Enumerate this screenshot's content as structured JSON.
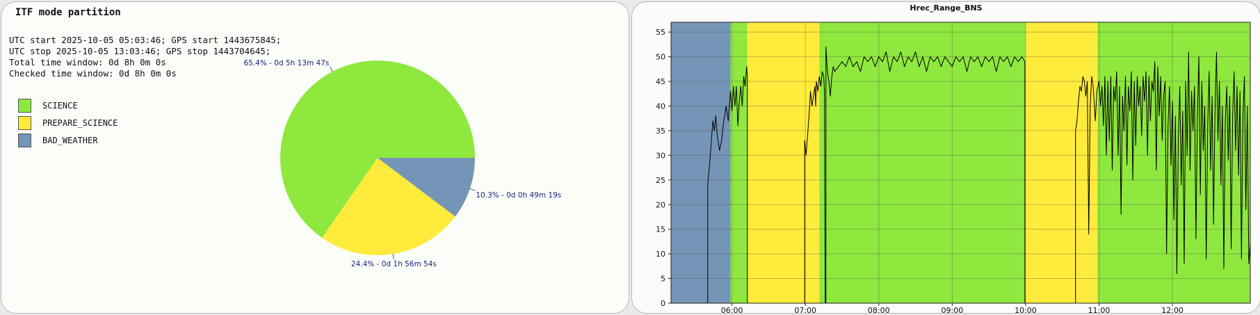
{
  "pie_panel": {
    "title": "ITF mode partition",
    "info_lines": [
      "UTC start 2025-10-05 05:03:46; GPS start 1443675845;",
      "UTC stop 2025-10-05 13:03:46; GPS stop 1443704645;",
      "Total time window: 0d 8h 0m 0s",
      "Checked time window: 0d 8h 0m 0s"
    ],
    "legend": [
      {
        "label": "SCIENCE",
        "color": "#8fe83e"
      },
      {
        "label": "PREPARE_SCIENCE",
        "color": "#ffeb3b"
      },
      {
        "label": "BAD_WEATHER",
        "color": "#7595b6"
      }
    ]
  },
  "chart_data": [
    {
      "type": "pie",
      "slices": [
        {
          "name": "SCIENCE",
          "value": 65.4,
          "label": "65.4% - 0d 5h 13m 47s",
          "color": "#8fe83e"
        },
        {
          "name": "PREPARE_SCIENCE",
          "value": 24.4,
          "label": "24.4% - 0d 1h 56m 54s",
          "color": "#ffeb3b"
        },
        {
          "name": "BAD_WEATHER",
          "value": 10.3,
          "label": "10.3% - 0d 0h 49m 19s",
          "color": "#7595b6"
        }
      ],
      "start_angle_deg": 0,
      "direction": "counterclockwise",
      "label_color": "#1a237e"
    },
    {
      "type": "line",
      "title": "Hrec_Range_BNS",
      "xlabel": "",
      "ylabel": "",
      "x_unit": "UTC hour",
      "xlim": [
        5.17,
        13.06
      ],
      "ylim": [
        0,
        57
      ],
      "x_ticks": [
        6,
        7,
        8,
        9,
        10,
        11,
        12
      ],
      "x_tick_labels": [
        "06:00",
        "07:00",
        "08:00",
        "09:00",
        "10:00",
        "11:00",
        "12:00"
      ],
      "y_ticks": [
        0,
        5,
        10,
        15,
        20,
        25,
        30,
        35,
        40,
        45,
        50,
        55
      ],
      "grid": true,
      "line_color": "#000000",
      "background_bands": [
        {
          "mode": "BAD_WEATHER",
          "x0": 5.17,
          "x1": 5.98,
          "color": "#7595b6"
        },
        {
          "mode": "SCIENCE",
          "x0": 5.98,
          "x1": 6.21,
          "color": "#8fe83e"
        },
        {
          "mode": "PREPARE_SCIENCE",
          "x0": 6.21,
          "x1": 7.19,
          "color": "#ffeb3b"
        },
        {
          "mode": "SCIENCE",
          "x0": 7.19,
          "x1": 10.0,
          "color": "#8fe83e"
        },
        {
          "mode": "PREPARE_SCIENCE",
          "x0": 10.0,
          "x1": 10.98,
          "color": "#ffeb3b"
        },
        {
          "mode": "SCIENCE",
          "x0": 10.98,
          "x1": 13.06,
          "color": "#8fe83e"
        }
      ],
      "series": [
        {
          "segments": [
            [
              [
                5.67,
                0
              ],
              [
                5.67,
                24
              ],
              [
                5.7,
                29
              ],
              [
                5.72,
                33
              ],
              [
                5.74,
                37
              ],
              [
                5.76,
                35
              ],
              [
                5.78,
                38
              ],
              [
                5.8,
                34
              ],
              [
                5.83,
                31
              ],
              [
                5.86,
                33
              ],
              [
                5.88,
                36
              ],
              [
                5.9,
                38
              ],
              [
                5.92,
                40
              ],
              [
                5.95,
                37
              ],
              [
                5.98,
                43
              ],
              [
                6.0,
                39
              ],
              [
                6.02,
                44
              ],
              [
                6.04,
                40
              ],
              [
                6.06,
                44
              ],
              [
                6.08,
                36
              ],
              [
                6.1,
                41
              ],
              [
                6.12,
                44
              ],
              [
                6.14,
                40
              ],
              [
                6.16,
                46
              ],
              [
                6.18,
                44
              ],
              [
                6.2,
                48
              ],
              [
                6.21,
                46
              ],
              [
                6.21,
                0
              ]
            ],
            [
              [
                6.99,
                0
              ],
              [
                6.99,
                33
              ],
              [
                7.01,
                30
              ],
              [
                7.03,
                34
              ],
              [
                7.05,
                38
              ],
              [
                7.07,
                43
              ],
              [
                7.09,
                40
              ],
              [
                7.11,
                42
              ],
              [
                7.13,
                44
              ],
              [
                7.14,
                40
              ],
              [
                7.15,
                45
              ],
              [
                7.17,
                43
              ],
              [
                7.19,
                46
              ],
              [
                7.21,
                44
              ],
              [
                7.23,
                47
              ],
              [
                7.25,
                46
              ],
              [
                7.26,
                43
              ],
              [
                7.27,
                0
              ],
              [
                7.28,
                0
              ],
              [
                7.28,
                52
              ],
              [
                7.3,
                47
              ],
              [
                7.32,
                45
              ],
              [
                7.34,
                42
              ],
              [
                7.36,
                46
              ],
              [
                7.38,
                48
              ],
              [
                7.4,
                47
              ],
              [
                7.45,
                48
              ],
              [
                7.5,
                49
              ],
              [
                7.55,
                48
              ],
              [
                7.6,
                50
              ],
              [
                7.65,
                48
              ],
              [
                7.7,
                49
              ],
              [
                7.75,
                47
              ],
              [
                7.8,
                50
              ],
              [
                7.85,
                49
              ],
              [
                7.9,
                50
              ],
              [
                7.95,
                48
              ],
              [
                8.0,
                50
              ],
              [
                8.05,
                49
              ],
              [
                8.1,
                51
              ],
              [
                8.15,
                47
              ],
              [
                8.2,
                50
              ],
              [
                8.25,
                49
              ],
              [
                8.3,
                51
              ],
              [
                8.35,
                48
              ],
              [
                8.4,
                50
              ],
              [
                8.45,
                49
              ],
              [
                8.5,
                51
              ],
              [
                8.55,
                48
              ],
              [
                8.6,
                50
              ],
              [
                8.65,
                47
              ],
              [
                8.7,
                50
              ],
              [
                8.75,
                49
              ],
              [
                8.8,
                50
              ],
              [
                8.85,
                48
              ],
              [
                8.9,
                50
              ],
              [
                8.95,
                49
              ],
              [
                9.0,
                48
              ],
              [
                9.05,
                50
              ],
              [
                9.1,
                49
              ],
              [
                9.15,
                50
              ],
              [
                9.2,
                47
              ],
              [
                9.25,
                50
              ],
              [
                9.3,
                49
              ],
              [
                9.35,
                50
              ],
              [
                9.4,
                48
              ],
              [
                9.45,
                50
              ],
              [
                9.5,
                49
              ],
              [
                9.55,
                50
              ],
              [
                9.6,
                47
              ],
              [
                9.65,
                50
              ],
              [
                9.7,
                49
              ],
              [
                9.75,
                50
              ],
              [
                9.8,
                48
              ],
              [
                9.85,
                50
              ],
              [
                9.9,
                49
              ],
              [
                9.95,
                50
              ],
              [
                9.99,
                49
              ],
              [
                9.99,
                0
              ]
            ],
            [
              [
                10.68,
                0
              ],
              [
                10.68,
                35
              ],
              [
                10.7,
                37
              ],
              [
                10.72,
                41
              ],
              [
                10.74,
                44
              ],
              [
                10.76,
                43
              ],
              [
                10.78,
                46
              ],
              [
                10.8,
                45
              ],
              [
                10.82,
                42
              ],
              [
                10.84,
                45
              ],
              [
                10.86,
                14
              ],
              [
                10.88,
                40
              ],
              [
                10.9,
                46
              ],
              [
                10.92,
                44
              ],
              [
                10.95,
                37
              ],
              [
                10.97,
                43
              ],
              [
                11.0,
                45
              ],
              [
                11.02,
                40
              ],
              [
                11.04,
                44
              ],
              [
                11.06,
                36
              ],
              [
                11.08,
                46
              ],
              [
                11.1,
                30
              ],
              [
                11.12,
                45
              ],
              [
                11.14,
                33
              ],
              [
                11.16,
                46
              ],
              [
                11.18,
                27
              ],
              [
                11.2,
                44
              ],
              [
                11.22,
                41
              ],
              [
                11.24,
                47
              ],
              [
                11.26,
                30
              ],
              [
                11.28,
                44
              ],
              [
                11.3,
                18
              ],
              [
                11.32,
                42
              ],
              [
                11.34,
                35
              ],
              [
                11.36,
                46
              ],
              [
                11.38,
                28
              ],
              [
                11.4,
                44
              ],
              [
                11.42,
                39
              ],
              [
                11.44,
                47
              ],
              [
                11.46,
                25
              ],
              [
                11.48,
                45
              ],
              [
                11.5,
                32
              ],
              [
                11.52,
                46
              ],
              [
                11.54,
                40
              ],
              [
                11.56,
                44
              ],
              [
                11.58,
                34
              ],
              [
                11.6,
                46
              ],
              [
                11.62,
                41
              ],
              [
                11.64,
                47
              ],
              [
                11.66,
                30
              ],
              [
                11.68,
                46
              ],
              [
                11.7,
                37
              ],
              [
                11.72,
                45
              ],
              [
                11.74,
                43
              ],
              [
                11.76,
                49
              ],
              [
                11.78,
                27
              ],
              [
                11.8,
                48
              ],
              [
                11.82,
                38
              ],
              [
                11.84,
                46
              ],
              [
                11.86,
                33
              ],
              [
                11.88,
                42
              ],
              [
                11.9,
                45
              ],
              [
                11.92,
                10
              ],
              [
                11.94,
                36
              ],
              [
                11.96,
                44
              ],
              [
                11.98,
                28
              ],
              [
                12.0,
                41
              ],
              [
                12.02,
                17
              ],
              [
                12.04,
                38
              ],
              [
                12.06,
                6
              ],
              [
                12.08,
                33
              ],
              [
                12.1,
                44
              ],
              [
                12.12,
                24
              ],
              [
                12.14,
                39
              ],
              [
                12.16,
                8
              ],
              [
                12.18,
                45
              ],
              [
                12.2,
                30
              ],
              [
                12.22,
                51
              ],
              [
                12.24,
                27
              ],
              [
                12.26,
                43
              ],
              [
                12.28,
                35
              ],
              [
                12.3,
                44
              ],
              [
                12.32,
                13
              ],
              [
                12.34,
                38
              ],
              [
                12.36,
                50
              ],
              [
                12.38,
                22
              ],
              [
                12.4,
                45
              ],
              [
                12.42,
                31
              ],
              [
                12.44,
                40
              ],
              [
                12.46,
                9
              ],
              [
                12.48,
                36
              ],
              [
                12.5,
                47
              ],
              [
                12.52,
                27
              ],
              [
                12.54,
                42
              ],
              [
                12.56,
                16
              ],
              [
                12.58,
                39
              ],
              [
                12.6,
                51
              ],
              [
                12.62,
                33
              ],
              [
                12.64,
                45
              ],
              [
                12.66,
                24
              ],
              [
                12.68,
                40
              ],
              [
                12.7,
                7
              ],
              [
                12.72,
                37
              ],
              [
                12.74,
                44
              ],
              [
                12.76,
                29
              ],
              [
                12.78,
                42
              ],
              [
                12.8,
                11
              ],
              [
                12.82,
                38
              ],
              [
                12.84,
                47
              ],
              [
                12.86,
                31
              ],
              [
                12.88,
                44
              ],
              [
                12.9,
                26
              ],
              [
                12.92,
                43
              ],
              [
                12.94,
                9
              ],
              [
                12.96,
                38
              ],
              [
                12.98,
                46
              ],
              [
                13.0,
                19
              ],
              [
                13.02,
                40
              ],
              [
                13.04,
                8
              ],
              [
                13.06,
                12
              ]
            ]
          ]
        }
      ]
    }
  ]
}
